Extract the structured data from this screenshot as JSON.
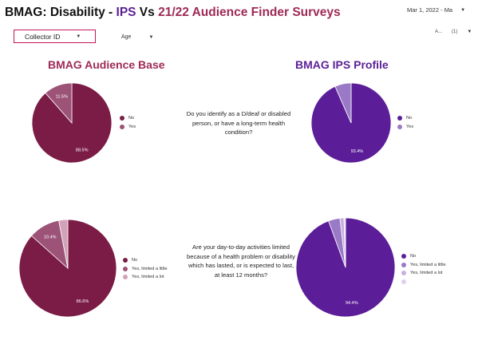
{
  "header": {
    "title_prefix": "BMAG: Disability - ",
    "title_ips": "IPS",
    "title_vs": " Vs ",
    "title_audience": "21/22 Audience Finder Surveys",
    "date_range": "Mar 1, 2022 - Ma"
  },
  "filters": {
    "collector_label": "Collector ID",
    "age_label": "Age",
    "top_right_label": "A...",
    "top_right_count": "(1)"
  },
  "headings": {
    "audience": "BMAG Audience Base",
    "ips": "BMAG IPS Profile"
  },
  "questions": {
    "q1": "Do you identify as a D/deaf or disabled person, or have a long-term health condition?",
    "q2": "Are your day-to-day activities limited because of a health problem or disability which has lasted, or is expected to last, at least 12 months?"
  },
  "colors": {
    "audience": [
      "#7b1c46",
      "#9c5377",
      "#d1a2b8"
    ],
    "ips": [
      "#5b1e98",
      "#9a79c7",
      "#c5b0e0",
      "#ddd0ee"
    ]
  },
  "chart_data": [
    {
      "type": "pie",
      "labels": [
        "No",
        "Yes"
      ],
      "values": [
        88.5,
        11.5
      ],
      "data_labels": [
        "88.5%",
        "11.5%"
      ],
      "legend": "right"
    },
    {
      "type": "pie",
      "labels": [
        "No",
        "Yes"
      ],
      "values": [
        93.4,
        6.6
      ],
      "data_labels": [
        "93.4%",
        ""
      ],
      "legend": "right"
    },
    {
      "type": "pie",
      "labels": [
        "No",
        "Yes, limited a little",
        "Yes, limited a lot"
      ],
      "values": [
        86.6,
        10.4,
        3.0
      ],
      "data_labels": [
        "86.6%",
        "10.4%",
        ""
      ],
      "legend": "right"
    },
    {
      "type": "pie",
      "labels": [
        "No",
        "Yes, limited a little",
        "Yes, limited a lot",
        ""
      ],
      "values": [
        94.4,
        3.8,
        1.3,
        0.5
      ],
      "data_labels": [
        "94.4%",
        "",
        "",
        ""
      ],
      "legend": "right"
    }
  ]
}
